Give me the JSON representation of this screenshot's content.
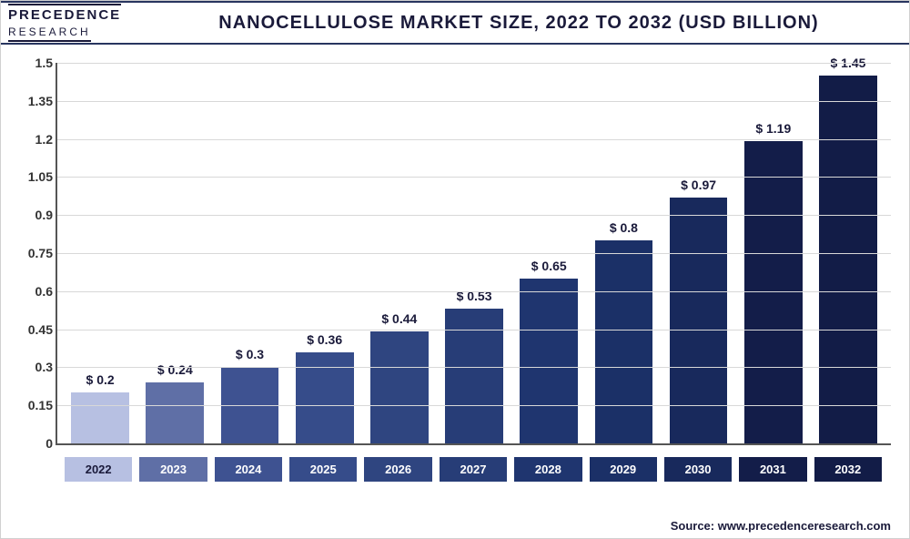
{
  "logo": {
    "line1": "PRECEDENCE",
    "line2": "RESEARCH"
  },
  "chart": {
    "type": "bar",
    "title": "NANOCELLULOSE MARKET SIZE, 2022 TO 2032 (USD BILLION)",
    "categories": [
      "2022",
      "2023",
      "2024",
      "2025",
      "2026",
      "2027",
      "2028",
      "2029",
      "2030",
      "2031",
      "2032"
    ],
    "values": [
      0.2,
      0.24,
      0.3,
      0.36,
      0.44,
      0.53,
      0.65,
      0.8,
      0.97,
      1.19,
      1.45
    ],
    "value_labels": [
      "$ 0.2",
      "$ 0.24",
      "$ 0.3",
      "$ 0.36",
      "$ 0.44",
      "$ 0.53",
      "$ 0.65",
      "$ 0.8",
      "$ 0.97",
      "$ 1.19",
      "$ 1.45"
    ],
    "bar_colors": [
      "#b7c0e2",
      "#5f6fa6",
      "#3e5291",
      "#364c8a",
      "#2f4580",
      "#273d77",
      "#1f356f",
      "#1b3067",
      "#18295c",
      "#131d49",
      "#121c47"
    ],
    "xlabel_bg_colors": [
      "#b7c0e2",
      "#5f6fa6",
      "#3e5291",
      "#364c8a",
      "#2f4580",
      "#273d77",
      "#1f356f",
      "#1b3067",
      "#18295c",
      "#131d49",
      "#121c47"
    ],
    "first_xlabel_text_color": "#1a1a3a",
    "ylim": [
      0,
      1.5
    ],
    "yticks": [
      0,
      0.15,
      0.3,
      0.45,
      0.6,
      0.75,
      0.9,
      1.05,
      1.2,
      1.35,
      1.5
    ],
    "grid_color": "#d8d8d8",
    "axis_color": "#555",
    "background_color": "#ffffff",
    "title_fontsize": 20,
    "label_fontsize": 14,
    "tick_fontsize": 14,
    "bar_width": 0.86
  },
  "source": "Source: www.precedenceresearch.com"
}
